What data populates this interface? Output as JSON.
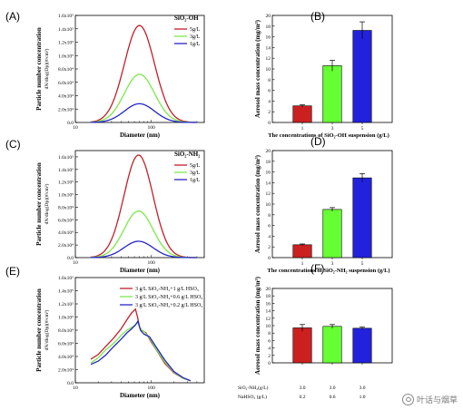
{
  "chart_data": [
    {
      "id": "A",
      "type": "line",
      "panel_label": "(A)",
      "xlabel": "Diameter (nm)",
      "ylabel": [
        "Particle number concentration",
        "dN/dlog(Dp)(#/cm³)"
      ],
      "xscale": "log",
      "xlim": [
        10,
        500
      ],
      "xtick_labels": [
        {
          "v": 10,
          "t": "10"
        },
        {
          "v": 100,
          "t": "100"
        }
      ],
      "ylim": [
        0,
        160000
      ],
      "ytick_labels": [
        "0.0",
        "2.0x10⁴",
        "4.0x10⁴",
        "6.0x10⁴",
        "8.0x10⁴",
        "1.0x10⁵",
        "1.2x10⁵",
        "1.4x10⁵",
        "1.6x10⁵"
      ],
      "legend_title": "SiO₂-OH",
      "series": [
        {
          "name": "5g/L",
          "color": "#c0202a",
          "shape": "gauss",
          "peak": 145000,
          "center": 70,
          "width": 0.28
        },
        {
          "name": "3g/L",
          "color": "#7ce84a",
          "shape": "gauss",
          "peak": 72000,
          "center": 70,
          "width": 0.28
        },
        {
          "name": "1g/L",
          "color": "#2626c8",
          "shape": "gauss",
          "peak": 28000,
          "center": 70,
          "width": 0.28
        }
      ]
    },
    {
      "id": "B",
      "type": "bar",
      "panel_label": "(B)",
      "ylabel": "Aerosol mass concentration (mg/m³)",
      "xlabel": "The concentrations of SiO₂-OH suspension (g/L)",
      "ylim": [
        0,
        20
      ],
      "yticks": [
        0,
        2,
        4,
        6,
        8,
        10,
        12,
        14,
        16,
        18,
        20
      ],
      "categories": [
        "1",
        "3",
        "5"
      ],
      "values": [
        3.1,
        10.6,
        17.2
      ],
      "errors": [
        0.2,
        1.0,
        1.6
      ],
      "colors": [
        "#cc2020",
        "#66ff33",
        "#2222dd"
      ]
    },
    {
      "id": "C",
      "type": "line",
      "panel_label": "(C)",
      "xlabel": "Diameter (nm)",
      "ylabel": [
        "Particle number concentration",
        "dN/dlog(Dp)(#/cm³)"
      ],
      "xscale": "log",
      "xlim": [
        10,
        500
      ],
      "xtick_labels": [
        {
          "v": 10,
          "t": "10"
        },
        {
          "v": 100,
          "t": "100"
        }
      ],
      "ylim": [
        0,
        170000
      ],
      "ytick_labels": [
        "0.0",
        "2.0x10⁴",
        "4.0x10⁴",
        "6.0x10⁴",
        "8.0x10⁴",
        "1.0x10⁵",
        "1.2x10⁵",
        "1.4x10⁵",
        "1.6x10⁵"
      ],
      "legend_title": "SiO₂-NH₂",
      "series": [
        {
          "name": "5g/L",
          "color": "#c0202a",
          "shape": "gauss",
          "peak": 163000,
          "center": 68,
          "width": 0.27
        },
        {
          "name": "3g/L",
          "color": "#7ce84a",
          "shape": "gauss",
          "peak": 74000,
          "center": 68,
          "width": 0.27
        },
        {
          "name": "1g/L",
          "color": "#2626c8",
          "shape": "gauss",
          "peak": 26000,
          "center": 68,
          "width": 0.27
        }
      ]
    },
    {
      "id": "D",
      "type": "bar",
      "panel_label": "(D)",
      "ylabel": "Aerosol mass concentration (mg/m³)",
      "xlabel": "The concentrations of SiO₂-NH₂ suspension (g/L)",
      "ylim": [
        0,
        20
      ],
      "yticks": [
        0,
        2,
        4,
        6,
        8,
        10,
        12,
        14,
        16,
        18,
        20
      ],
      "categories": [
        "1",
        "3",
        "5"
      ],
      "values": [
        2.4,
        9.0,
        14.9
      ],
      "errors": [
        0.15,
        0.35,
        0.8
      ],
      "colors": [
        "#cc2020",
        "#66ff33",
        "#2222dd"
      ]
    },
    {
      "id": "E",
      "type": "line",
      "panel_label": "(E)",
      "xlabel": "Diameter (nm)",
      "ylabel": [
        "Particle number concentration",
        "dN/dlog(Dp)(#/cm³)"
      ],
      "xscale": "log",
      "xlim": [
        10,
        500
      ],
      "xtick_labels": [
        {
          "v": 10,
          "t": "10"
        },
        {
          "v": 100,
          "t": "100"
        }
      ],
      "ylim": [
        0,
        160000
      ],
      "ytick_labels": [
        "0.0",
        "2.0x10⁴",
        "4.0x10⁴",
        "6.0x10⁴",
        "8.0x10⁴",
        "1.0x10⁵",
        "1.2x10⁵",
        "1.4x10⁵",
        "1.6x10⁵"
      ],
      "series": [
        {
          "name": "3 g/L SiO₂-NH₂+1 g/L HSO₃",
          "color": "#c0202a",
          "shape": "points",
          "points": [
            [
              16,
              36000
            ],
            [
              20,
              43000
            ],
            [
              25,
              55000
            ],
            [
              32,
              68000
            ],
            [
              40,
              82000
            ],
            [
              48,
              96000
            ],
            [
              55,
              106000
            ],
            [
              62,
              112000
            ],
            [
              66,
              100000
            ],
            [
              70,
              85000
            ],
            [
              75,
              80000
            ],
            [
              85,
              76000
            ],
            [
              100,
              62000
            ],
            [
              120,
              48000
            ],
            [
              150,
              30000
            ],
            [
              200,
              15000
            ],
            [
              260,
              7000
            ],
            [
              330,
              3000
            ]
          ]
        },
        {
          "name": "3 g/L SiO₂-NH₂+0.6 g/L HSO₃",
          "color": "#7ce84a",
          "shape": "points",
          "points": [
            [
              16,
              30000
            ],
            [
              20,
              38000
            ],
            [
              25,
              50000
            ],
            [
              32,
              60000
            ],
            [
              40,
              72000
            ],
            [
              48,
              80000
            ],
            [
              55,
              84000
            ],
            [
              62,
              88000
            ],
            [
              66,
              92000
            ],
            [
              72,
              82000
            ],
            [
              80,
              78000
            ],
            [
              95,
              68000
            ],
            [
              115,
              52000
            ],
            [
              150,
              32000
            ],
            [
              200,
              16000
            ],
            [
              260,
              7000
            ],
            [
              330,
              3000
            ]
          ]
        },
        {
          "name": "3 g/L SiO₂-NH₂+0.2 g/L HSO₃",
          "color": "#2626c8",
          "shape": "points",
          "points": [
            [
              16,
              28000
            ],
            [
              20,
              33000
            ],
            [
              25,
              42000
            ],
            [
              32,
              55000
            ],
            [
              40,
              66000
            ],
            [
              48,
              76000
            ],
            [
              55,
              82000
            ],
            [
              62,
              88000
            ],
            [
              67,
              94000
            ],
            [
              72,
              80000
            ],
            [
              80,
              74000
            ],
            [
              95,
              70000
            ],
            [
              115,
              55000
            ],
            [
              150,
              35000
            ],
            [
              200,
              17000
            ],
            [
              260,
              8000
            ],
            [
              330,
              3000
            ]
          ]
        }
      ]
    },
    {
      "id": "F",
      "type": "bar",
      "panel_label": "(F)",
      "ylabel": "Aerosol mass concentration (mg/m³)",
      "ylim": [
        0,
        20
      ],
      "yticks": [
        0,
        2,
        4,
        6,
        8,
        10,
        12,
        14,
        16,
        18,
        20
      ],
      "categories": [
        "",
        "",
        ""
      ],
      "row_labels": [
        {
          "name": "SiO₂-NH₂(g/L)",
          "values": [
            "3.0",
            "3.0",
            "3.0"
          ]
        },
        {
          "name": "NaHSO₃ (g/L)",
          "values": [
            "0.2",
            "0.6",
            "1.0"
          ]
        }
      ],
      "values": [
        9.4,
        9.8,
        9.3
      ],
      "errors": [
        0.9,
        0.5,
        0.3
      ],
      "colors": [
        "#cc2020",
        "#66ff33",
        "#2222dd"
      ]
    }
  ],
  "watermark": {
    "text": "叶话与烟草"
  }
}
